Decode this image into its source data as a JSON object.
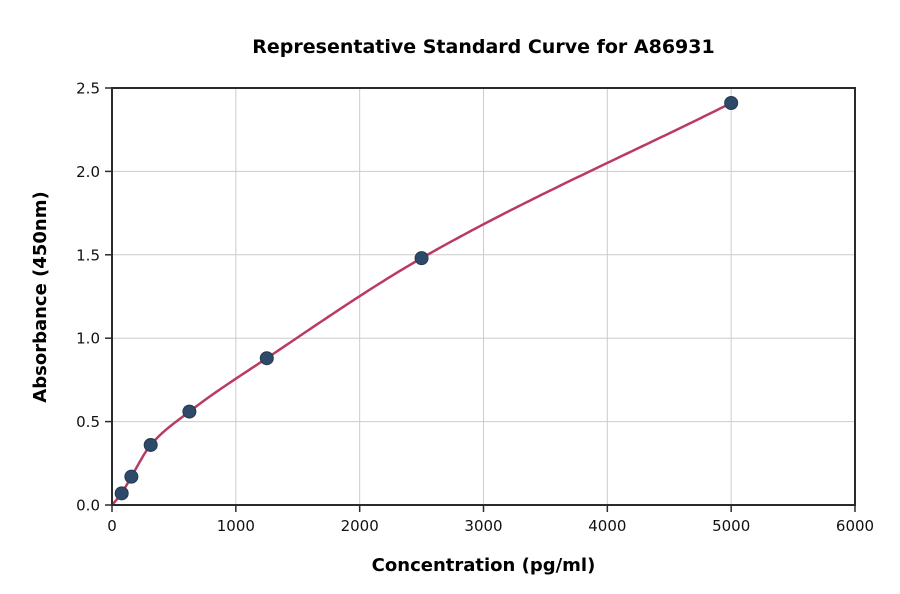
{
  "chart_data": {
    "type": "scatter",
    "title": "Representative Standard Curve for A86931",
    "xlabel": "Concentration (pg/ml)",
    "ylabel": "Absorbance (450nm)",
    "xlim": [
      0,
      6000
    ],
    "ylim": [
      0,
      2.5
    ],
    "x_ticks": [
      0,
      1000,
      2000,
      3000,
      4000,
      5000,
      6000
    ],
    "y_ticks": [
      0.0,
      0.5,
      1.0,
      1.5,
      2.0,
      2.5
    ],
    "grid": true,
    "legend": "none",
    "series": [
      {
        "name": "standards",
        "marker": "circle",
        "points": [
          {
            "x": 78.1,
            "y": 0.07
          },
          {
            "x": 156.3,
            "y": 0.17
          },
          {
            "x": 312.5,
            "y": 0.36
          },
          {
            "x": 625,
            "y": 0.56
          },
          {
            "x": 1250,
            "y": 0.88
          },
          {
            "x": 2500,
            "y": 1.48
          },
          {
            "x": 5000,
            "y": 2.41
          }
        ]
      }
    ],
    "fit_curve": {
      "description": "smooth fitted curve from origin through standard points",
      "x_start": 0,
      "y_start": 0,
      "x_end": 5000,
      "y_end": 2.41
    },
    "colors": {
      "point_fill": "#2e4a6a",
      "point_edge": "#24394f",
      "curve": "#bb3a64",
      "grid": "#cccccc",
      "spine": "#2b2b2b",
      "tick_text": "#111111",
      "background": "#ffffff"
    }
  }
}
